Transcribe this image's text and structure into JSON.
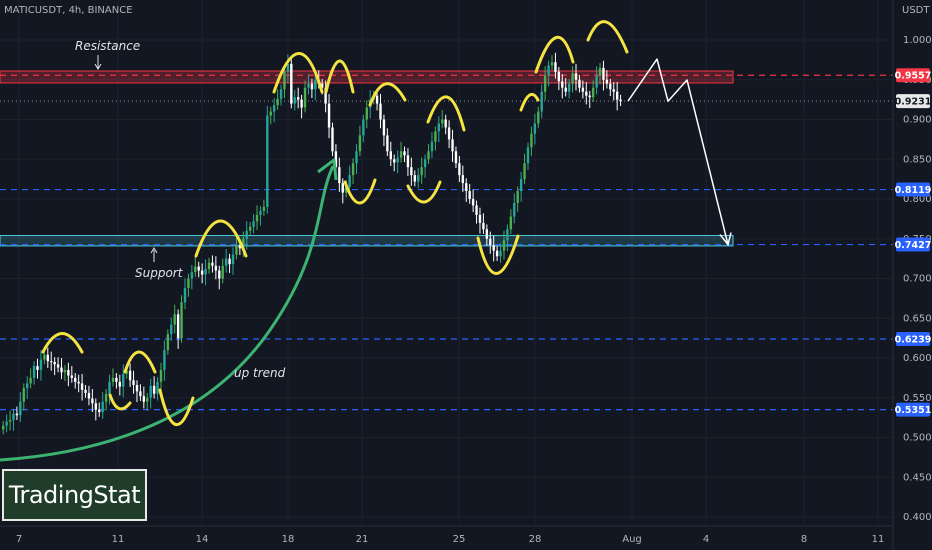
{
  "header": {
    "symbol_line": "MATICUSDT, 4h, BINANCE",
    "currency": "USDT"
  },
  "brand": {
    "logo_text": "TradingStat"
  },
  "colors": {
    "background": "#131722",
    "up_candle": "#26a69a",
    "up_candle_alt": "#4caf50",
    "down_candle": "#ffffff",
    "resistance_zone": "#f23645",
    "support_zone": "#4dd0e1",
    "dashed_blue": "#2962ff",
    "trend_curve": "#3cb371",
    "highlight_arcs": "#f5e342",
    "projection": "#ffffff"
  },
  "chart_data": {
    "type": "candlestick",
    "symbol": "MATICUSDT",
    "interval": "4h",
    "exchange": "BINANCE",
    "y_axis": {
      "label": "USDT",
      "ylim": [
        0.385,
        1.03
      ],
      "ticks": [
        "1.0000",
        "0.9500",
        "0.9000",
        "0.8500",
        "0.8000",
        "0.7500",
        "0.7000",
        "0.6500",
        "0.6000",
        "0.5500",
        "0.5000",
        "0.4500",
        "0.4000"
      ]
    },
    "x_axis": {
      "ticks": [
        "7",
        "11",
        "14",
        "18",
        "21",
        "25",
        "28",
        "Aug",
        "4",
        "8",
        "11"
      ]
    },
    "horizontal_levels": [
      {
        "value": 0.9557,
        "label": "0.9557",
        "style": "dashed",
        "color": "red"
      },
      {
        "value": 0.9231,
        "label": "0.9231",
        "style": "dotted",
        "color": "gray",
        "current_price": true
      },
      {
        "value": 0.8119,
        "label": "0.8119",
        "style": "dashed",
        "color": "blue"
      },
      {
        "value": 0.7427,
        "label": "0.7427",
        "style": "dashed",
        "color": "blue"
      },
      {
        "value": 0.6239,
        "label": "0.6239",
        "style": "dashed",
        "color": "blue"
      },
      {
        "value": 0.5351,
        "label": "0.5351",
        "style": "dashed",
        "color": "blue"
      }
    ],
    "zones": [
      {
        "name": "Resistance",
        "low": 0.946,
        "high": 0.961
      },
      {
        "name": "Support",
        "low": 0.741,
        "high": 0.754
      }
    ],
    "annotations": [
      {
        "text": "Resistance"
      },
      {
        "text": "Support"
      },
      {
        "text": "up trend"
      }
    ],
    "closes": [
      0.515,
      0.52,
      0.522,
      0.53,
      0.528,
      0.545,
      0.562,
      0.568,
      0.575,
      0.59,
      0.585,
      0.598,
      0.604,
      0.596,
      0.595,
      0.592,
      0.588,
      0.582,
      0.585,
      0.578,
      0.575,
      0.57,
      0.568,
      0.56,
      0.556,
      0.549,
      0.543,
      0.535,
      0.532,
      0.545,
      0.555,
      0.57,
      0.575,
      0.57,
      0.564,
      0.58,
      0.584,
      0.572,
      0.566,
      0.558,
      0.552,
      0.545,
      0.55,
      0.565,
      0.555,
      0.57,
      0.585,
      0.61,
      0.63,
      0.642,
      0.655,
      0.625,
      0.67,
      0.688,
      0.7,
      0.708,
      0.715,
      0.71,
      0.705,
      0.712,
      0.72,
      0.716,
      0.71,
      0.7,
      0.716,
      0.725,
      0.718,
      0.73,
      0.742,
      0.738,
      0.75,
      0.76,
      0.765,
      0.772,
      0.78,
      0.785,
      0.79,
      0.905,
      0.91,
      0.918,
      0.926,
      0.938,
      0.96,
      0.97,
      0.92,
      0.928,
      0.925,
      0.915,
      0.94,
      0.945,
      0.938,
      0.95,
      0.945,
      0.94,
      0.92,
      0.89,
      0.86,
      0.84,
      0.82,
      0.808,
      0.815,
      0.83,
      0.845,
      0.86,
      0.88,
      0.9,
      0.915,
      0.925,
      0.93,
      0.92,
      0.9,
      0.88,
      0.86,
      0.85,
      0.846,
      0.852,
      0.86,
      0.855,
      0.84,
      0.83,
      0.822,
      0.83,
      0.84,
      0.85,
      0.86,
      0.872,
      0.885,
      0.895,
      0.9,
      0.89,
      0.875,
      0.86,
      0.845,
      0.83,
      0.82,
      0.81,
      0.8,
      0.792,
      0.78,
      0.77,
      0.762,
      0.75,
      0.742,
      0.735,
      0.728,
      0.735,
      0.748,
      0.762,
      0.778,
      0.795,
      0.81,
      0.825,
      0.845,
      0.865,
      0.882,
      0.895,
      0.91,
      0.935,
      0.955,
      0.968,
      0.972,
      0.96,
      0.948,
      0.94,
      0.935,
      0.945,
      0.958,
      0.95,
      0.94,
      0.935,
      0.93,
      0.928,
      0.94,
      0.955,
      0.965,
      0.95,
      0.945,
      0.938,
      0.935,
      0.925,
      0.923
    ]
  },
  "projection": {
    "points": [
      [
        0.9231
      ],
      [
        0.976
      ],
      [
        0.923
      ],
      [
        0.9497
      ],
      [
        0.7427
      ]
    ]
  }
}
